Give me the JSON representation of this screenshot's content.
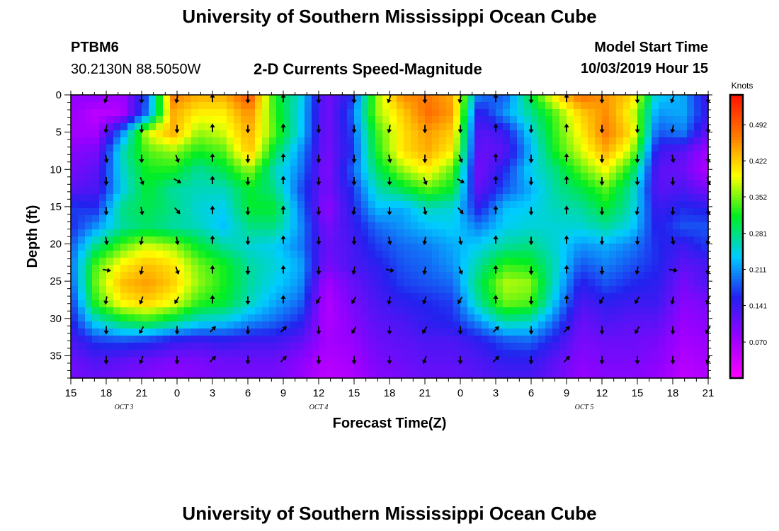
{
  "page": {
    "title_top": "University of Southern Mississippi Ocean Cube",
    "title_bottom": "University of Southern Mississippi Ocean Cube",
    "station_id": "PTBM6",
    "station_coords": "30.2130N 88.5050W",
    "plot_title": "2-D Currents Speed-Magnitude",
    "model_start_label": "Model Start Time",
    "model_start_value": "10/03/2019 Hour 15"
  },
  "colors": {
    "scale": [
      "#ff00ff",
      "#9900ff",
      "#2222ee",
      "#00ccff",
      "#00ee22",
      "#ffff00",
      "#ff7700",
      "#ff1100"
    ],
    "frame": "#000000",
    "arrow": "#000000"
  },
  "chart_data": {
    "type": "heatmap",
    "title": "2-D Currents Speed-Magnitude",
    "xlabel": "Forecast Time(Z)",
    "ylabel": "Depth (ft)",
    "x_range_hours": [
      0,
      54
    ],
    "y_range_ft": [
      0,
      38
    ],
    "y_inverted": true,
    "xticks": [
      {
        "hour": 0,
        "label": "15"
      },
      {
        "hour": 3,
        "label": "18"
      },
      {
        "hour": 6,
        "label": "21"
      },
      {
        "hour": 9,
        "label": "0"
      },
      {
        "hour": 12,
        "label": "3"
      },
      {
        "hour": 15,
        "label": "6"
      },
      {
        "hour": 18,
        "label": "9"
      },
      {
        "hour": 21,
        "label": "12"
      },
      {
        "hour": 24,
        "label": "15"
      },
      {
        "hour": 27,
        "label": "18"
      },
      {
        "hour": 30,
        "label": "21"
      },
      {
        "hour": 33,
        "label": "0"
      },
      {
        "hour": 36,
        "label": "3"
      },
      {
        "hour": 39,
        "label": "6"
      },
      {
        "hour": 42,
        "label": "9"
      },
      {
        "hour": 45,
        "label": "12"
      },
      {
        "hour": 48,
        "label": "15"
      },
      {
        "hour": 51,
        "label": "18"
      },
      {
        "hour": 54,
        "label": "21"
      }
    ],
    "yticks": [
      0,
      5,
      10,
      15,
      20,
      25,
      30,
      35
    ],
    "date_labels": [
      {
        "hour": 4.5,
        "label": "OCT 3"
      },
      {
        "hour": 21,
        "label": "OCT 4"
      },
      {
        "hour": 43.5,
        "label": "OCT 5"
      }
    ],
    "colorbar": {
      "title": "Knots",
      "range": [
        0,
        0.55
      ],
      "ticks": [
        "0.070",
        "0.141",
        "0.211",
        "0.281",
        "0.352",
        "0.422",
        "0.492"
      ],
      "tick_values": [
        0.07,
        0.141,
        0.211,
        0.281,
        0.352,
        0.422,
        0.492
      ]
    },
    "arrow_times_hours": [
      3,
      6,
      9,
      12,
      15,
      18,
      21,
      24,
      27,
      30,
      33,
      36,
      39,
      42,
      45,
      48,
      51,
      54
    ],
    "arrow_depths_ft": [
      0.5,
      4.5,
      8.5,
      11.5,
      15.5,
      19.5,
      23.5,
      27.5,
      31.5,
      35.5
    ],
    "arrow_angles_deg": [
      [
        200,
        180,
        190,
        0,
        180,
        0,
        180,
        180
      ],
      [
        190,
        180,
        180,
        0,
        180,
        0,
        180,
        180
      ],
      [
        170,
        180,
        160,
        0,
        180,
        0,
        180,
        180
      ],
      [
        180,
        160,
        120,
        0,
        180,
        0,
        180,
        180
      ],
      [
        180,
        170,
        140,
        0,
        180,
        0,
        180,
        190
      ],
      [
        170,
        190,
        170,
        0,
        180,
        0,
        180,
        180
      ],
      [
        100,
        190,
        160,
        0,
        180,
        0,
        180,
        190
      ],
      [
        190,
        200,
        210,
        0,
        180,
        0,
        210,
        210
      ],
      [
        180,
        210,
        180,
        45,
        180,
        45,
        180,
        210
      ],
      [
        180,
        200,
        180,
        45,
        180,
        45,
        180,
        180
      ]
    ],
    "speed_knots": [
      [
        0.08,
        0.09,
        0.07,
        0.18,
        0.47,
        0.44,
        0.44,
        0.5,
        0.32,
        0.25,
        0.1,
        0.16,
        0.36,
        0.46,
        0.47,
        0.44,
        0.2,
        0.18,
        0.3,
        0.41,
        0.48,
        0.45,
        0.42,
        0.24,
        0.22,
        0.13
      ],
      [
        0.08,
        0.05,
        0.06,
        0.2,
        0.44,
        0.4,
        0.4,
        0.46,
        0.33,
        0.24,
        0.1,
        0.18,
        0.36,
        0.42,
        0.48,
        0.45,
        0.14,
        0.21,
        0.27,
        0.34,
        0.42,
        0.46,
        0.39,
        0.21,
        0.22,
        0.14
      ],
      [
        0.07,
        0.07,
        0.2,
        0.38,
        0.44,
        0.36,
        0.38,
        0.44,
        0.34,
        0.24,
        0.1,
        0.17,
        0.33,
        0.41,
        0.45,
        0.42,
        0.12,
        0.14,
        0.24,
        0.33,
        0.4,
        0.47,
        0.41,
        0.18,
        0.2,
        0.11
      ],
      [
        0.09,
        0.1,
        0.26,
        0.34,
        0.36,
        0.32,
        0.34,
        0.43,
        0.3,
        0.21,
        0.1,
        0.16,
        0.32,
        0.41,
        0.44,
        0.4,
        0.11,
        0.12,
        0.22,
        0.32,
        0.38,
        0.44,
        0.37,
        0.14,
        0.12,
        0.07
      ],
      [
        0.1,
        0.12,
        0.25,
        0.32,
        0.32,
        0.27,
        0.3,
        0.36,
        0.26,
        0.2,
        0.09,
        0.18,
        0.29,
        0.36,
        0.4,
        0.34,
        0.1,
        0.16,
        0.24,
        0.28,
        0.34,
        0.39,
        0.31,
        0.12,
        0.11,
        0.06
      ],
      [
        0.12,
        0.13,
        0.24,
        0.31,
        0.27,
        0.26,
        0.26,
        0.31,
        0.28,
        0.18,
        0.1,
        0.16,
        0.26,
        0.3,
        0.34,
        0.31,
        0.11,
        0.18,
        0.22,
        0.27,
        0.3,
        0.34,
        0.27,
        0.12,
        0.13,
        0.1
      ],
      [
        0.17,
        0.16,
        0.28,
        0.3,
        0.28,
        0.25,
        0.24,
        0.31,
        0.31,
        0.2,
        0.08,
        0.15,
        0.23,
        0.22,
        0.26,
        0.25,
        0.15,
        0.23,
        0.24,
        0.26,
        0.27,
        0.31,
        0.26,
        0.14,
        0.16,
        0.15
      ],
      [
        0.16,
        0.21,
        0.27,
        0.29,
        0.27,
        0.26,
        0.23,
        0.28,
        0.28,
        0.21,
        0.1,
        0.14,
        0.19,
        0.21,
        0.23,
        0.24,
        0.2,
        0.24,
        0.25,
        0.25,
        0.25,
        0.27,
        0.24,
        0.15,
        0.18,
        0.18
      ],
      [
        0.18,
        0.28,
        0.34,
        0.38,
        0.36,
        0.31,
        0.27,
        0.25,
        0.24,
        0.2,
        0.11,
        0.13,
        0.17,
        0.19,
        0.2,
        0.22,
        0.24,
        0.27,
        0.28,
        0.25,
        0.21,
        0.22,
        0.2,
        0.16,
        0.14,
        0.17
      ],
      [
        0.19,
        0.34,
        0.4,
        0.43,
        0.41,
        0.35,
        0.32,
        0.27,
        0.25,
        0.22,
        0.1,
        0.13,
        0.15,
        0.18,
        0.19,
        0.21,
        0.27,
        0.33,
        0.32,
        0.26,
        0.18,
        0.2,
        0.18,
        0.16,
        0.12,
        0.13
      ],
      [
        0.18,
        0.35,
        0.43,
        0.45,
        0.42,
        0.36,
        0.32,
        0.27,
        0.24,
        0.21,
        0.07,
        0.11,
        0.14,
        0.17,
        0.18,
        0.19,
        0.29,
        0.37,
        0.36,
        0.25,
        0.15,
        0.18,
        0.16,
        0.15,
        0.1,
        0.13
      ],
      [
        0.16,
        0.33,
        0.4,
        0.42,
        0.39,
        0.33,
        0.31,
        0.26,
        0.22,
        0.19,
        0.06,
        0.1,
        0.13,
        0.15,
        0.16,
        0.17,
        0.27,
        0.35,
        0.34,
        0.23,
        0.13,
        0.15,
        0.14,
        0.14,
        0.09,
        0.1
      ],
      [
        0.15,
        0.25,
        0.3,
        0.32,
        0.29,
        0.25,
        0.24,
        0.21,
        0.19,
        0.16,
        0.06,
        0.09,
        0.12,
        0.13,
        0.15,
        0.16,
        0.21,
        0.27,
        0.26,
        0.19,
        0.11,
        0.13,
        0.12,
        0.12,
        0.08,
        0.09
      ],
      [
        0.13,
        0.17,
        0.18,
        0.17,
        0.15,
        0.14,
        0.15,
        0.14,
        0.14,
        0.12,
        0.07,
        0.08,
        0.11,
        0.12,
        0.13,
        0.13,
        0.15,
        0.18,
        0.19,
        0.15,
        0.1,
        0.11,
        0.11,
        0.1,
        0.07,
        0.08
      ],
      [
        0.11,
        0.13,
        0.12,
        0.11,
        0.1,
        0.1,
        0.11,
        0.11,
        0.11,
        0.09,
        0.06,
        0.07,
        0.1,
        0.11,
        0.12,
        0.12,
        0.13,
        0.15,
        0.15,
        0.12,
        0.09,
        0.1,
        0.1,
        0.09,
        0.06,
        0.07
      ],
      [
        0.1,
        0.11,
        0.1,
        0.09,
        0.08,
        0.09,
        0.1,
        0.1,
        0.1,
        0.08,
        0.05,
        0.06,
        0.09,
        0.1,
        0.11,
        0.11,
        0.12,
        0.13,
        0.13,
        0.11,
        0.08,
        0.09,
        0.09,
        0.08,
        0.05,
        0.06
      ]
    ]
  }
}
